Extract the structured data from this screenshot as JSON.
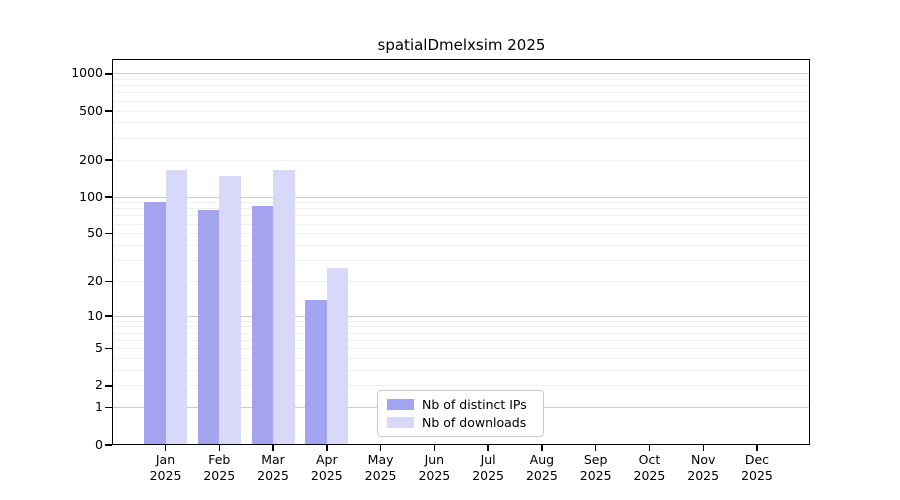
{
  "title": "spatialDmelxsim 2025",
  "legend": {
    "items": [
      {
        "key": "distinct-ips",
        "label": "Nb of distinct IPs",
        "color": "#a3a3f0"
      },
      {
        "key": "downloads",
        "label": "Nb of downloads",
        "color": "#d8d8f8"
      }
    ]
  },
  "colors": {
    "distinct_ips_bar": "#a3a3f0",
    "downloads_bar": "#d8d8f8",
    "major_grid": "#cccccc",
    "minor_grid": "#efefef",
    "axis": "#000000"
  },
  "chart_data": {
    "type": "bar",
    "title": "spatialDmelxsim 2025",
    "categories": [
      "Jan 2025",
      "Feb 2025",
      "Mar 2025",
      "Apr 2025",
      "May 2025",
      "Jun 2025",
      "Jul 2025",
      "Aug 2025",
      "Sep 2025",
      "Oct 2025",
      "Nov 2025",
      "Dec 2025"
    ],
    "series": [
      {
        "key": "distinct-ips",
        "name": "Nb of distinct IPs",
        "color": "#a3a3f0",
        "values": [
          91,
          78,
          84,
          14,
          0,
          0,
          0,
          0,
          0,
          0,
          0,
          0
        ]
      },
      {
        "key": "downloads",
        "name": "Nb of downloads",
        "color": "#d8d8f8",
        "values": [
          165,
          148,
          165,
          26,
          0,
          0,
          0,
          0,
          0,
          0,
          0,
          0
        ]
      }
    ],
    "xlabel": "",
    "ylabel": "",
    "y_scale": "log10(1+x)",
    "y_ticks": [
      0,
      1,
      2,
      5,
      10,
      20,
      50,
      100,
      200,
      500,
      1000
    ],
    "y_minor_ticks": [
      2,
      3,
      4,
      5,
      6,
      7,
      8,
      9,
      20,
      30,
      40,
      50,
      60,
      70,
      80,
      90,
      200,
      300,
      400,
      500,
      600,
      700,
      800,
      900
    ],
    "y_major_gridlines": [
      1,
      10,
      100,
      1000
    ],
    "ylim": [
      0,
      1300
    ],
    "grid": "horizontal",
    "legend_position": "lower-center-left"
  }
}
